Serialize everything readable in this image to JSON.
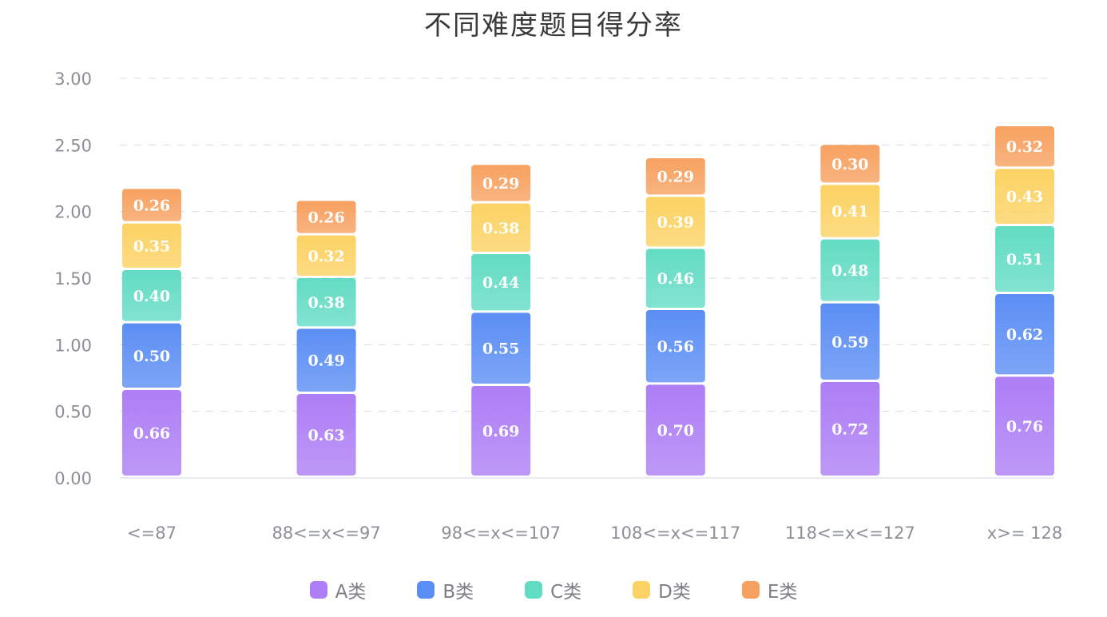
{
  "chart_data": {
    "type": "bar",
    "stacked": true,
    "title": "不同难度题目得分率",
    "categories": [
      "<=87",
      "88<=x<=97",
      "98<=x<=107",
      "108<=x<=117",
      "118<=x<=127",
      "x>= 128"
    ],
    "series": [
      {
        "name": "A类",
        "values": [
          0.66,
          0.63,
          0.69,
          0.7,
          0.72,
          0.76
        ],
        "color": "#ad7ef5"
      },
      {
        "name": "B类",
        "values": [
          0.5,
          0.49,
          0.55,
          0.56,
          0.59,
          0.62
        ],
        "color": "#5b8ef4"
      },
      {
        "name": "C类",
        "values": [
          0.4,
          0.38,
          0.44,
          0.46,
          0.48,
          0.51
        ],
        "color": "#63dcc4"
      },
      {
        "name": "D类",
        "values": [
          0.35,
          0.32,
          0.38,
          0.39,
          0.41,
          0.43
        ],
        "color": "#fbd263"
      },
      {
        "name": "E类",
        "values": [
          0.26,
          0.26,
          0.29,
          0.29,
          0.3,
          0.32
        ],
        "color": "#f7a160"
      }
    ],
    "ylim": [
      0,
      3.0
    ],
    "yticks": [
      "0.00",
      "0.50",
      "1.00",
      "1.50",
      "2.00",
      "2.50",
      "3.00"
    ],
    "grid": true,
    "legend_position": "bottom"
  }
}
